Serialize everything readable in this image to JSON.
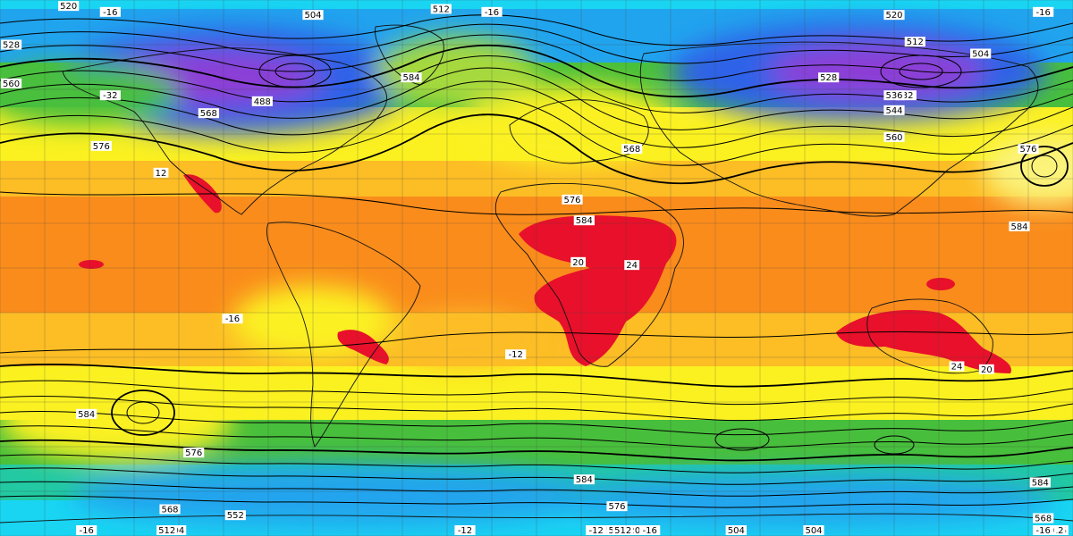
{
  "map": {
    "field_colors": {
      "deep_violet": "#6a1fb6",
      "violet": "#8d3cd6",
      "blue": "#2e62e8",
      "light_blue": "#21a4ee",
      "cyan": "#19d5f2",
      "teal": "#22c9a2",
      "green": "#48bf3c",
      "yellow_green": "#a6d93d",
      "yellow": "#fbf120",
      "pale_yellow": "#fbf37a",
      "light_orange": "#fcbd25",
      "orange": "#fa8c1c",
      "dark_orange": "#f4661b",
      "red": "#e8102a"
    },
    "contour_labels": [
      {
        "text": "520",
        "lon": -157,
        "lat": 88
      },
      {
        "text": "-16",
        "lon": -143,
        "lat": 86
      },
      {
        "text": "504",
        "lon": -75,
        "lat": 85
      },
      {
        "text": "512",
        "lon": -32,
        "lat": 87
      },
      {
        "text": "-16",
        "lon": -15,
        "lat": 86
      },
      {
        "text": "520",
        "lon": 120,
        "lat": 85
      },
      {
        "text": "-16",
        "lon": 170,
        "lat": 86
      },
      {
        "text": "528",
        "lon": -177,
        "lat": 75
      },
      {
        "text": "512",
        "lon": 127,
        "lat": 76
      },
      {
        "text": "504",
        "lon": 149,
        "lat": 72
      },
      {
        "text": "-32",
        "lon": 124,
        "lat": 58
      },
      {
        "text": "-32",
        "lon": -143,
        "lat": 58
      },
      {
        "text": "488",
        "lon": -92,
        "lat": 56
      },
      {
        "text": "560",
        "lon": -177,
        "lat": 62
      },
      {
        "text": "528",
        "lon": 98,
        "lat": 64
      },
      {
        "text": "536",
        "lon": 120,
        "lat": 58
      },
      {
        "text": "544",
        "lon": 120,
        "lat": 53
      },
      {
        "text": "560",
        "lon": 120,
        "lat": 44
      },
      {
        "text": "576",
        "lon": 165,
        "lat": 40
      },
      {
        "text": "568",
        "lon": -110,
        "lat": 52
      },
      {
        "text": "576",
        "lon": -146,
        "lat": 41
      },
      {
        "text": "584",
        "lon": -42,
        "lat": 64
      },
      {
        "text": "576",
        "lon": 12,
        "lat": 23
      },
      {
        "text": "584",
        "lon": 16,
        "lat": 16
      },
      {
        "text": "568",
        "lon": 32,
        "lat": 40
      },
      {
        "text": "584",
        "lon": 162,
        "lat": 14
      },
      {
        "text": "-16",
        "lon": -102,
        "lat": -17
      },
      {
        "text": "-12",
        "lon": -7,
        "lat": -29
      },
      {
        "text": "584",
        "lon": -151,
        "lat": -49
      },
      {
        "text": "576",
        "lon": -115,
        "lat": -62
      },
      {
        "text": "584",
        "lon": 16,
        "lat": -71
      },
      {
        "text": "576",
        "lon": 27,
        "lat": -80
      },
      {
        "text": "568",
        "lon": -123,
        "lat": -81
      },
      {
        "text": "552",
        "lon": -101,
        "lat": -83
      },
      {
        "text": "560",
        "lon": 26,
        "lat": -97
      },
      {
        "text": "568",
        "lon": 27,
        "lat": -91
      },
      {
        "text": "536",
        "lon": 30,
        "lat": -103
      },
      {
        "text": "520",
        "lon": 32,
        "lat": -116
      },
      {
        "text": "512",
        "lon": 29,
        "lat": -128
      },
      {
        "text": "504",
        "lon": 67,
        "lat": -136
      },
      {
        "text": "504",
        "lon": 67,
        "lat": -154
      },
      {
        "text": "-16",
        "lon": 38,
        "lat": -156
      },
      {
        "text": "-16",
        "lon": -151,
        "lat": -137
      },
      {
        "text": "-12",
        "lon": -24,
        "lat": -131
      },
      {
        "text": "-12",
        "lon": 20,
        "lat": -133
      },
      {
        "text": "504",
        "lon": -121,
        "lat": -130
      },
      {
        "text": "512",
        "lon": -124,
        "lat": -127
      },
      {
        "text": "536",
        "lon": 175,
        "lat": -118
      },
      {
        "text": "512",
        "lon": 174,
        "lat": -131
      },
      {
        "text": "560",
        "lon": 171,
        "lat": -107
      },
      {
        "text": "568",
        "lon": 170,
        "lat": -84
      },
      {
        "text": "584",
        "lon": 169,
        "lat": -72
      },
      {
        "text": "-16",
        "lon": 170,
        "lat": -157
      },
      {
        "text": "504",
        "lon": 93,
        "lat": -120
      },
      {
        "text": "20",
        "lon": 14,
        "lat": 2
      },
      {
        "text": "24",
        "lon": 32,
        "lat": 1
      },
      {
        "text": "24",
        "lon": 141,
        "lat": -33
      },
      {
        "text": "20",
        "lon": 151,
        "lat": -34
      },
      {
        "text": "12",
        "lon": -126,
        "lat": 32
      }
    ]
  }
}
